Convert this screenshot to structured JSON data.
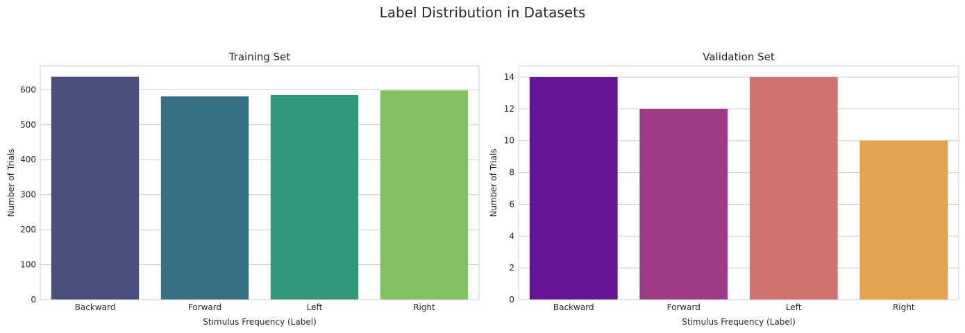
{
  "figure": {
    "suptitle": "Label Distribution in Datasets"
  },
  "chart_data": [
    {
      "type": "bar",
      "title": "Training Set",
      "xlabel": "Stimulus Frequency (Label)",
      "ylabel": "Number of Trials",
      "categories": [
        "Backward",
        "Forward",
        "Left",
        "Right"
      ],
      "values": [
        637,
        581,
        585,
        598
      ],
      "ylim": [
        0,
        668
      ],
      "yticks": [
        0,
        100,
        200,
        300,
        400,
        500,
        600
      ],
      "colors": [
        "#4a4e7c",
        "#366f7f",
        "#33977b",
        "#80c262"
      ],
      "grid": true,
      "legend": "none"
    },
    {
      "type": "bar",
      "title": "Validation Set",
      "xlabel": "Stimulus Frequency (Label)",
      "ylabel": "Number of Trials",
      "categories": [
        "Backward",
        "Forward",
        "Left",
        "Right"
      ],
      "values": [
        14,
        12,
        14,
        10
      ],
      "ylim": [
        0,
        14.7
      ],
      "yticks": [
        0,
        2,
        4,
        6,
        8,
        10,
        12,
        14
      ],
      "colors": [
        "#651495",
        "#9f3a86",
        "#d07271",
        "#e4a34f"
      ],
      "grid": true,
      "legend": "none"
    }
  ]
}
